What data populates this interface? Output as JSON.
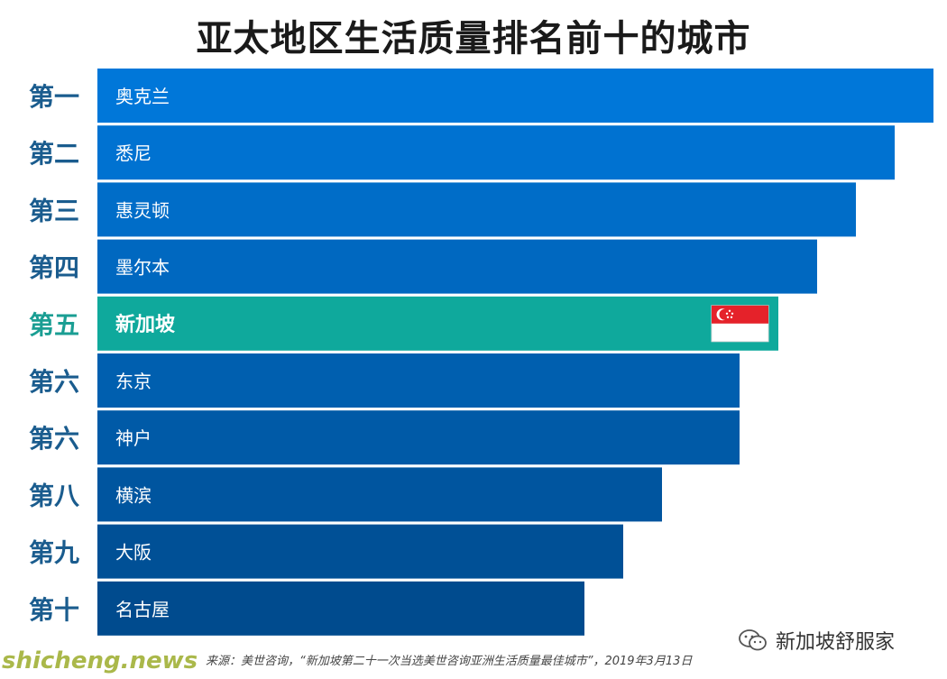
{
  "header": {
    "title": "亚太地区生活质量排名前十的城市"
  },
  "colors": {
    "bar_top": "#0077d9",
    "bar_bottom": "#004b8e",
    "highlight": "#0fa99c",
    "rank_text": "#1a5c8e",
    "highlight_rank_text": "#1a9e93"
  },
  "chart_data": {
    "type": "bar",
    "orientation": "horizontal",
    "title": "亚太地区生活质量排名前十的城市",
    "ranks": [
      "第一",
      "第二",
      "第三",
      "第四",
      "第五",
      "第六",
      "第六",
      "第八",
      "第九",
      "第十"
    ],
    "categories": [
      "奥克兰",
      "悉尼",
      "惠灵顿",
      "墨尔本",
      "新加坡",
      "东京",
      "神户",
      "横滨",
      "大阪",
      "名古屋"
    ],
    "values": [
      1,
      2,
      3,
      4,
      5,
      6,
      6,
      8,
      9,
      10
    ],
    "highlight": "新加坡",
    "highlight_icon": "singapore-flag-icon",
    "grid": false,
    "legend": "none"
  },
  "footer": {
    "source": "来源：美世咨询，“新加坡第二十一次当选美世咨询亚洲生活质量最佳城市”，2019年3月13日",
    "site": "shicheng.news",
    "brand": "新加坡舒服家",
    "brand_icon": "wechat-icon"
  }
}
